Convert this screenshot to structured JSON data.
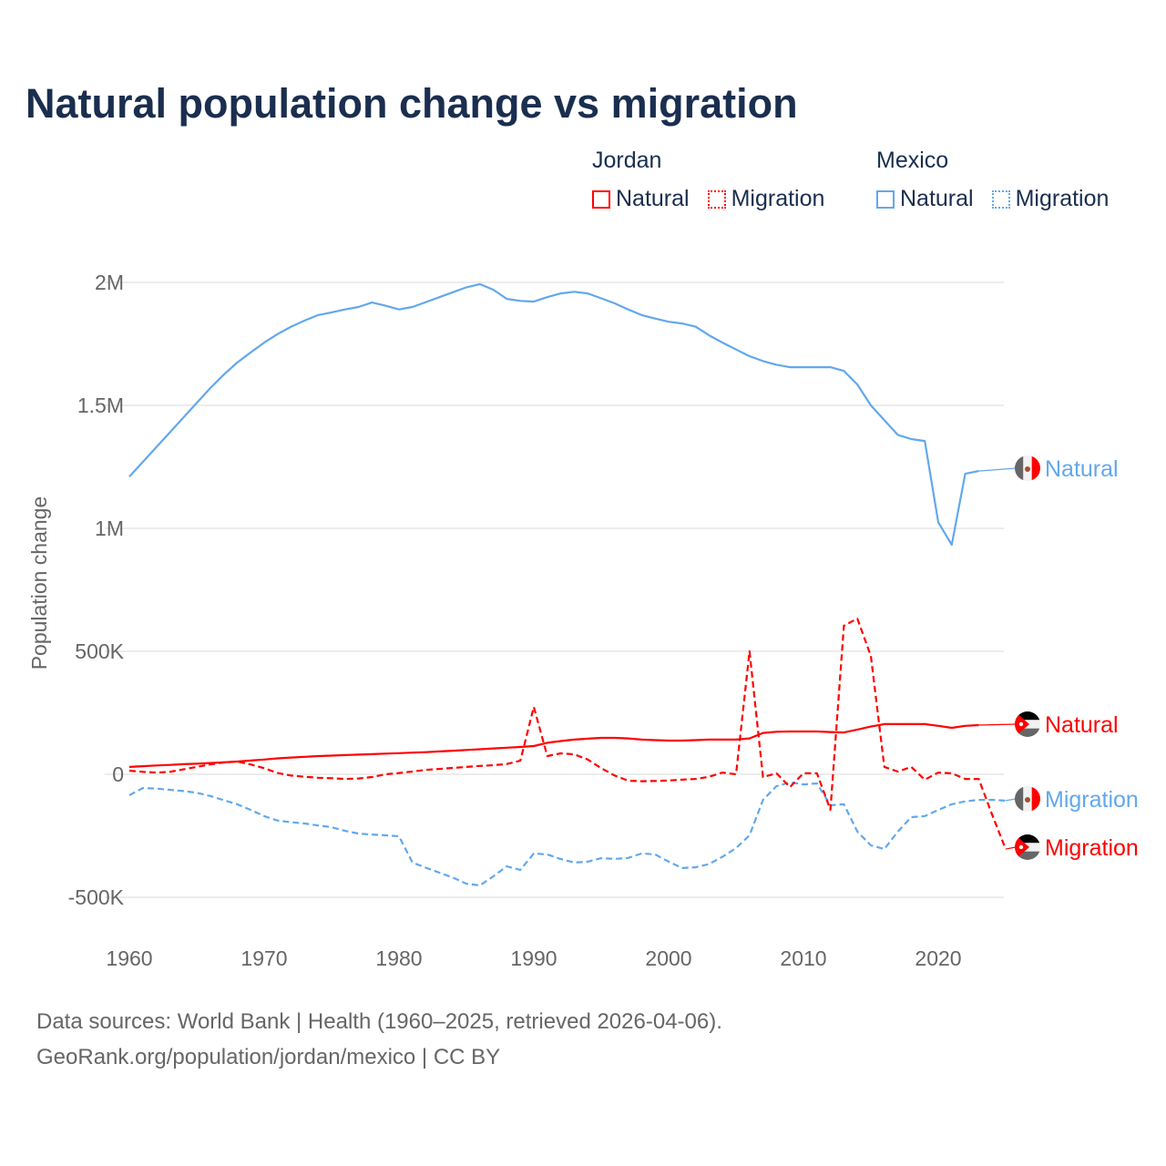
{
  "title": "Natural population change vs migration",
  "legend": {
    "groups": [
      {
        "name": "Jordan",
        "items": [
          {
            "label": "Natural",
            "style": "solid",
            "color": "#ff0000"
          },
          {
            "label": "Migration",
            "style": "dotted",
            "color": "#ff0000"
          }
        ]
      },
      {
        "name": "Mexico",
        "items": [
          {
            "label": "Natural",
            "style": "solid",
            "color": "#62a8ec"
          },
          {
            "label": "Migration",
            "style": "dotted",
            "color": "#62a8ec"
          }
        ]
      }
    ]
  },
  "footer": {
    "line1": "Data sources: World Bank | Health (1960–2025, retrieved 2026-04-06).",
    "line2": "GeoRank.org/population/jordan/mexico | CC BY"
  },
  "chart_data": {
    "type": "line",
    "title": "Natural population change vs migration",
    "xlabel": "",
    "ylabel": "Population change",
    "xlim": [
      1960,
      2025
    ],
    "ylim": [
      -550000,
      2100000
    ],
    "x_ticks": [
      1960,
      1970,
      1980,
      1990,
      2000,
      2010,
      2020
    ],
    "x_tick_labels": [
      "1960",
      "1970",
      "1980",
      "1990",
      "2000",
      "2010",
      "2020"
    ],
    "y_ticks": [
      -500000,
      0,
      500000,
      1000000,
      1500000,
      2000000
    ],
    "y_tick_labels": [
      "-500K",
      "0",
      "500K",
      "1M",
      "1.5M",
      "2M"
    ],
    "grid": true,
    "legend_position": "top-right",
    "series": [
      {
        "name": "Mexico Natural",
        "end_label": "Natural",
        "country": "Mexico",
        "color": "#62a8ec",
        "dash": false,
        "start_year": 1960,
        "values": [
          1210000,
          1270000,
          1330000,
          1390000,
          1450000,
          1510000,
          1570000,
          1625000,
          1674000,
          1715000,
          1755000,
          1790000,
          1820000,
          1845000,
          1867000,
          1878000,
          1890000,
          1900000,
          1918000,
          1905000,
          1890000,
          1900000,
          1920000,
          1940000,
          1960000,
          1980000,
          1993000,
          1970000,
          1933000,
          1925000,
          1922000,
          1940000,
          1955000,
          1962000,
          1955000,
          1935000,
          1915000,
          1890000,
          1867000,
          1853000,
          1840000,
          1833000,
          1820000,
          1785000,
          1755000,
          1727000,
          1700000,
          1680000,
          1665000,
          1655000,
          1655000,
          1655000,
          1655000,
          1640000,
          1585000,
          1500000,
          1440000,
          1380000,
          1363000,
          1355000,
          1025000,
          933000,
          1222000,
          1233000
        ]
      },
      {
        "name": "Jordan Natural",
        "end_label": "Natural",
        "country": "Jordan",
        "color": "#ff0000",
        "dash": false,
        "start_year": 1960,
        "values": [
          30000,
          33000,
          36000,
          38000,
          41000,
          43000,
          46000,
          49000,
          52000,
          56000,
          60000,
          65000,
          68000,
          71000,
          74000,
          76000,
          78000,
          80000,
          82000,
          84000,
          86000,
          88000,
          90000,
          93000,
          96000,
          99000,
          102000,
          105000,
          108000,
          111000,
          115000,
          128000,
          135000,
          141000,
          145000,
          148000,
          148000,
          146000,
          141000,
          139000,
          137000,
          137000,
          139000,
          141000,
          141000,
          141000,
          146000,
          168000,
          173000,
          174000,
          174000,
          174000,
          172000,
          170000,
          182000,
          194000,
          204000,
          204000,
          204000,
          204000,
          197000,
          189000,
          197000,
          200000
        ]
      },
      {
        "name": "Mexico Migration",
        "end_label": "Migration",
        "country": "Mexico",
        "color": "#62a8ec",
        "dash": true,
        "start_year": 1960,
        "values": [
          -85000,
          -56000,
          -58000,
          -63000,
          -68000,
          -75000,
          -88000,
          -105000,
          -122000,
          -145000,
          -170000,
          -188000,
          -195000,
          -200000,
          -208000,
          -215000,
          -230000,
          -241000,
          -245000,
          -248000,
          -252000,
          -359000,
          -380000,
          -400000,
          -420000,
          -445000,
          -452000,
          -415000,
          -374000,
          -389000,
          -322000,
          -326000,
          -345000,
          -359000,
          -355000,
          -341000,
          -344000,
          -340000,
          -322000,
          -326000,
          -355000,
          -381000,
          -378000,
          -365000,
          -335000,
          -300000,
          -248000,
          -104000,
          -48000,
          -33000,
          -41000,
          -37000,
          -126000,
          -122000,
          -233000,
          -289000,
          -304000,
          -233000,
          -174000,
          -170000,
          -145000,
          -122000,
          -110000,
          -104000,
          -104000,
          -107000
        ]
      },
      {
        "name": "Jordan Migration",
        "end_label": "Migration",
        "country": "Jordan",
        "color": "#ff0000",
        "dash": true,
        "start_year": 1960,
        "values": [
          15000,
          10000,
          7000,
          10000,
          20000,
          30000,
          40000,
          48000,
          52000,
          40000,
          25000,
          5000,
          -5000,
          -10000,
          -14000,
          -16000,
          -19000,
          -17000,
          -11000,
          0,
          5000,
          11000,
          18000,
          22000,
          26000,
          30000,
          34000,
          37000,
          42000,
          55000,
          274000,
          74000,
          85000,
          81000,
          60000,
          25000,
          -5000,
          -26000,
          -28000,
          -27000,
          -25000,
          -22000,
          -19000,
          -10000,
          7000,
          0,
          500000,
          -11000,
          4000,
          -52000,
          4000,
          4000,
          -144000,
          604000,
          633000,
          481000,
          30000,
          11000,
          30000,
          -22000,
          7000,
          4000,
          -19000,
          -19000,
          -165000,
          -304000
        ]
      }
    ]
  }
}
